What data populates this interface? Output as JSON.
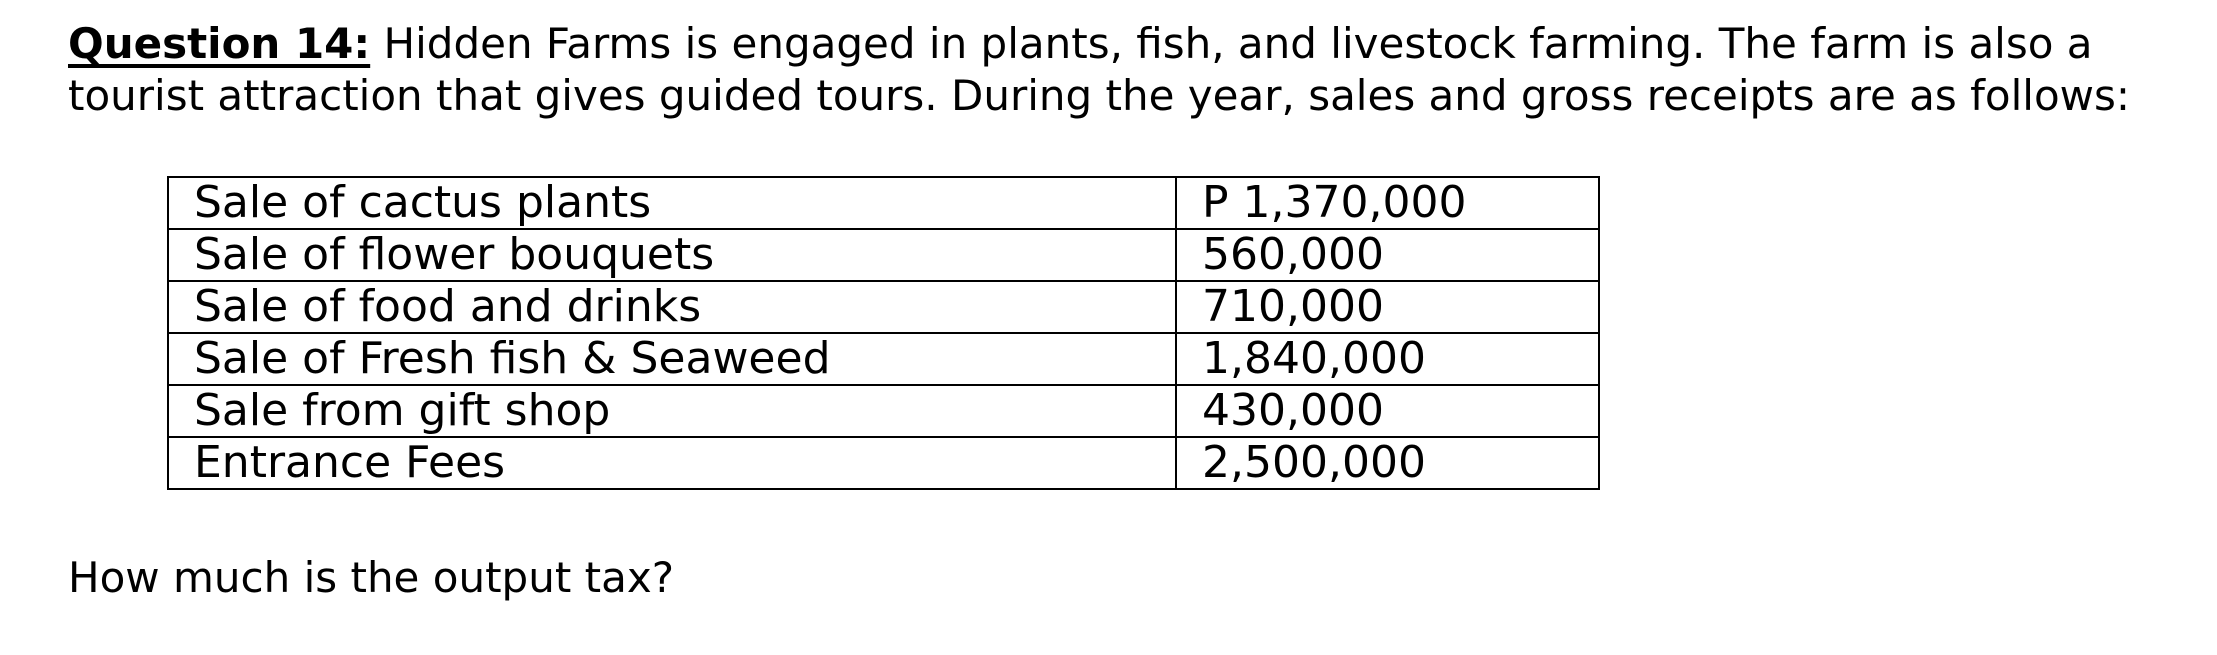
{
  "question": {
    "label": "Question 14:",
    "text": " Hidden Farms is engaged in plants, fish, and livestock farming. The farm is also a tourist attraction that gives guided tours. During the year, sales and gross receipts are as follows:"
  },
  "table": {
    "rows": [
      {
        "item": "Sale of cactus plants",
        "amount": "P 1,370,000"
      },
      {
        "item": "Sale of flower bouquets",
        "amount": "560,000"
      },
      {
        "item": "Sale of food and drinks",
        "amount": "710,000"
      },
      {
        "item": "Sale of Fresh fish & Seaweed",
        "amount": "1,840,000"
      },
      {
        "item": "Sale from gift shop",
        "amount": "430,000"
      },
      {
        "item": "Entrance Fees",
        "amount": "2,500,000"
      }
    ]
  },
  "prompt": "How much is the output tax?"
}
